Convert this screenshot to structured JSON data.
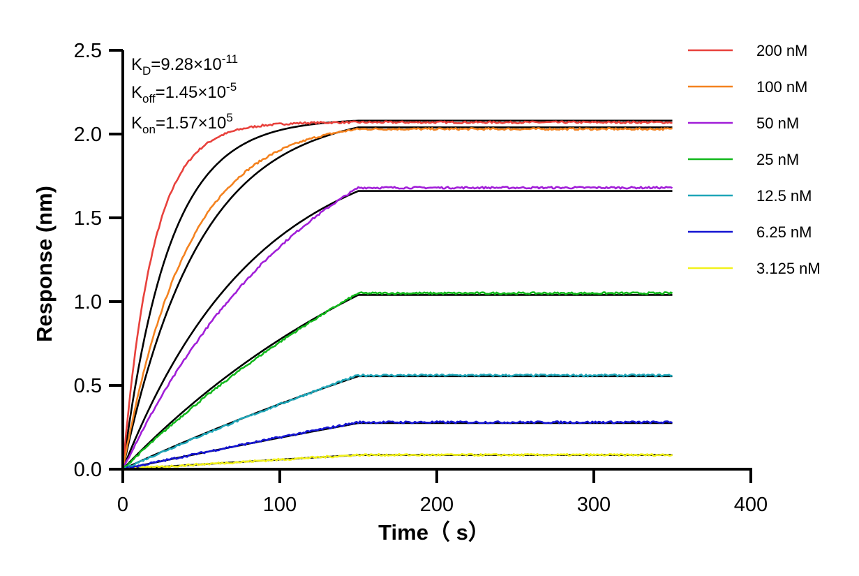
{
  "chart_data": {
    "type": "line",
    "xlabel": "Time（ s）",
    "ylabel": "Response (nm)",
    "xlim": [
      0,
      400
    ],
    "ylim": [
      0,
      2.5
    ],
    "x_ticks": [
      "0",
      "100",
      "200",
      "300",
      "400"
    ],
    "y_ticks": [
      "0.0",
      "0.5",
      "1.0",
      "1.5",
      "2.0",
      "2.5"
    ],
    "x_tick_values": [
      0,
      100,
      200,
      300,
      400
    ],
    "y_tick_values": [
      0,
      0.5,
      1.0,
      1.5,
      2.0,
      2.5
    ],
    "grid": false,
    "legend_position": "right",
    "annotations": {
      "kd": {
        "symbol": "K",
        "sub": "D",
        "value": "=9.28×10",
        "exp": "-11"
      },
      "koff": {
        "symbol": "K",
        "sub": "off",
        "value": "=1.45×10",
        "exp": "-5"
      },
      "kon": {
        "symbol": "K",
        "sub": "on",
        "value": "=1.57×10",
        "exp": "5"
      }
    },
    "association_end_s": 150,
    "dissociation_end_s": 350,
    "series": [
      {
        "name": "200 nM",
        "color": "#e8413c",
        "plateau": 2.07,
        "fit_plateau": 2.08,
        "rate": 0.052,
        "fit_rate": 0.034
      },
      {
        "name": "100 nM",
        "color": "#f4821f",
        "plateau": 2.03,
        "fit_plateau": 2.04,
        "rate": 0.0245,
        "fit_rate": 0.0205
      },
      {
        "name": "50 nM",
        "color": "#a11ed8",
        "plateau": 1.68,
        "fit_plateau": 1.66,
        "rate": 0.0082,
        "fit_rate": 0.0119
      },
      {
        "name": "25 nM",
        "color": "#12b81c",
        "plateau": 1.05,
        "fit_plateau": 1.04,
        "rate": 0.0035,
        "fit_rate": 0.0049
      },
      {
        "name": "12.5 nM",
        "color": "#1fa6b8",
        "plateau": 0.56,
        "fit_plateau": 0.555,
        "rate": 0.0015,
        "fit_rate": 0.0021
      },
      {
        "name": "6.25 nM",
        "color": "#1414d2",
        "plateau": 0.28,
        "fit_plateau": 0.275,
        "rate": 0.0008,
        "fit_rate": 0.001
      },
      {
        "name": "3.125 nM",
        "color": "#f2f21c",
        "plateau": 0.085,
        "fit_plateau": 0.085,
        "rate": 0.0004,
        "fit_rate": 0.0004
      }
    ],
    "fit_color": "#000000"
  }
}
